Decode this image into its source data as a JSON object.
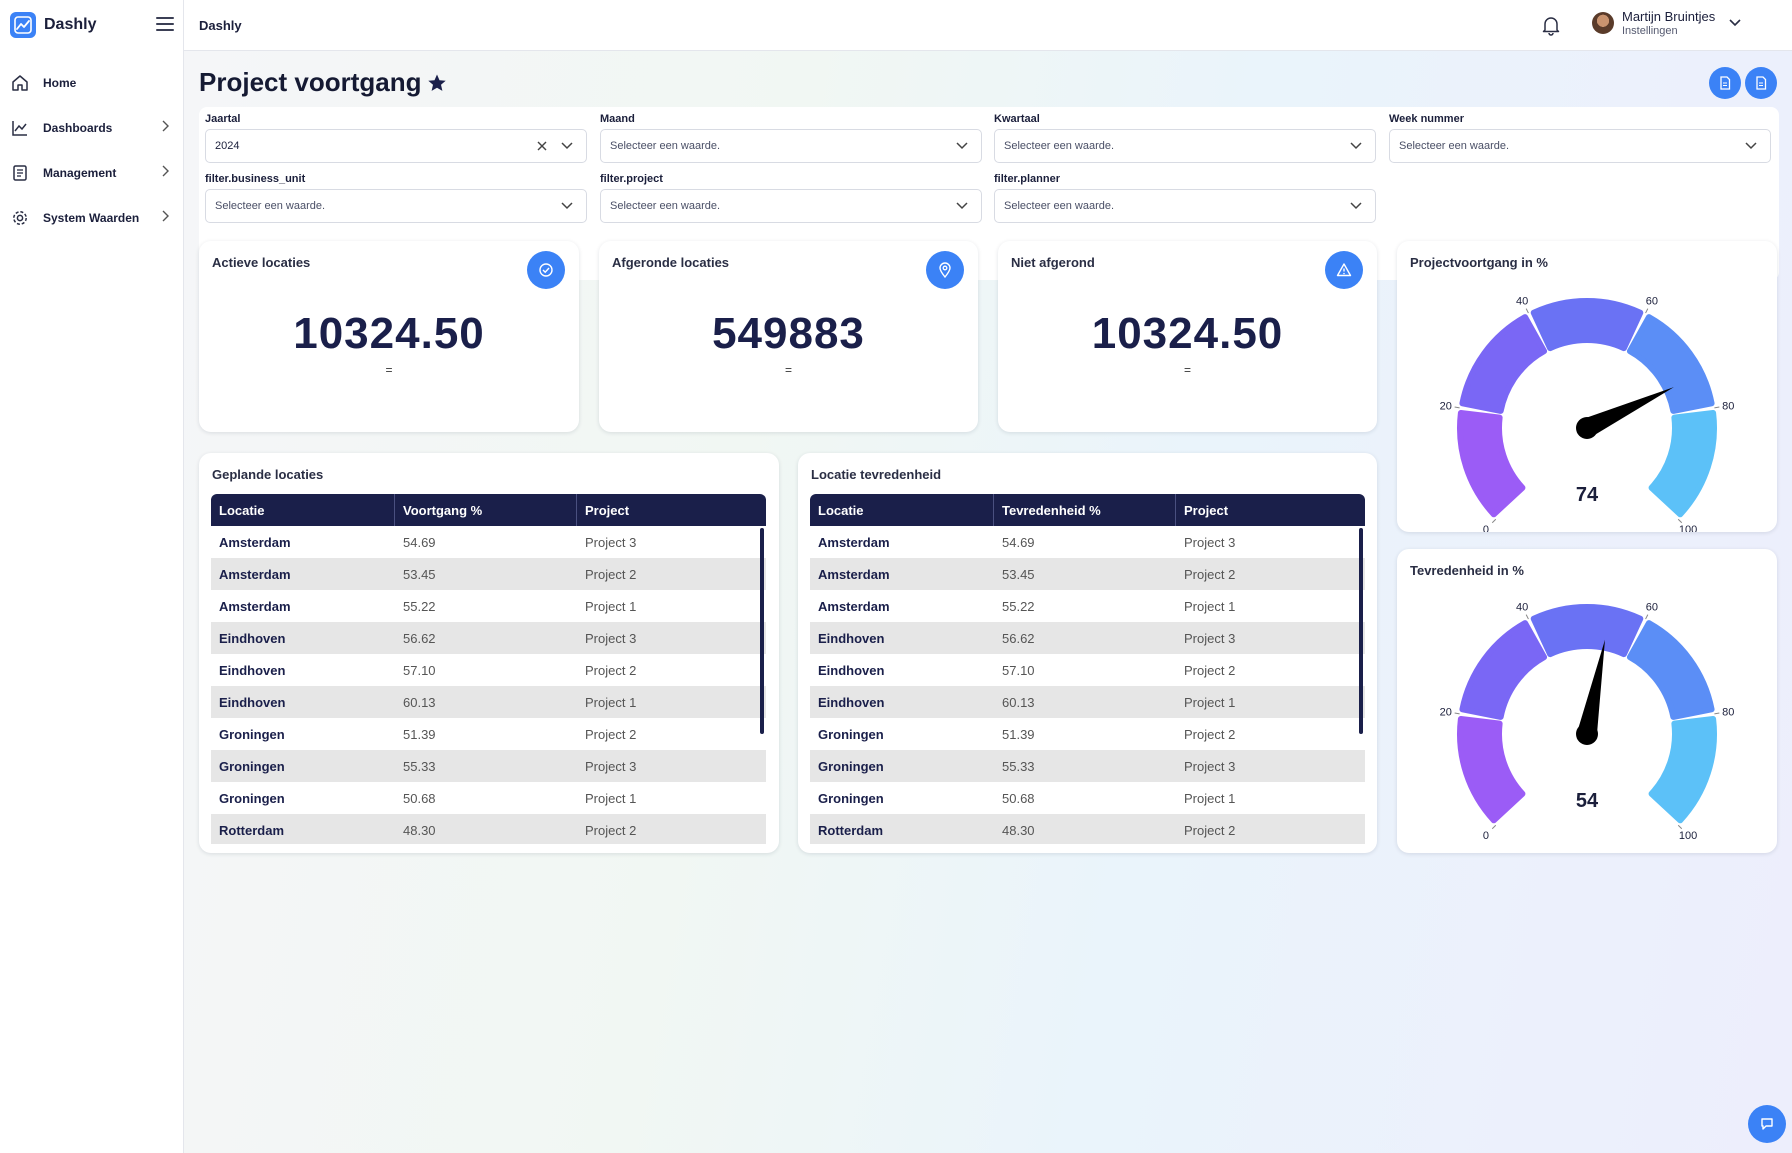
{
  "app": {
    "name": "Dashly"
  },
  "sidebar": {
    "items": [
      {
        "label": "Home",
        "icon": "home-icon"
      },
      {
        "label": "Dashboards",
        "icon": "chart-line-icon"
      },
      {
        "label": "Management",
        "icon": "document-icon"
      },
      {
        "label": "System Waarden",
        "icon": "gear-icon"
      }
    ]
  },
  "topbar": {
    "title": "Dashly",
    "user": {
      "name": "Martijn Bruintjes",
      "subtitle": "Instellingen"
    }
  },
  "page": {
    "title": "Project voortgang"
  },
  "filters": {
    "jaartal": {
      "label": "Jaartal",
      "value": "2024"
    },
    "maand": {
      "label": "Maand",
      "placeholder": "Selecteer een waarde."
    },
    "kwartaal": {
      "label": "Kwartaal",
      "placeholder": "Selecteer een waarde."
    },
    "week": {
      "label": "Week nummer",
      "placeholder": "Selecteer een waarde."
    },
    "business_unit": {
      "label": "filter.business_unit",
      "placeholder": "Selecteer een waarde."
    },
    "project": {
      "label": "filter.project",
      "placeholder": "Selecteer een waarde."
    },
    "planner": {
      "label": "filter.planner",
      "placeholder": "Selecteer een waarde."
    }
  },
  "kpis": [
    {
      "title": "Actieve locaties",
      "value": "10324.50",
      "trend": "=",
      "icon": "check-circle-icon"
    },
    {
      "title": "Afgeronde locaties",
      "value": "549883",
      "trend": "=",
      "icon": "map-pin-icon"
    },
    {
      "title": "Niet afgerond",
      "value": "10324.50",
      "trend": "=",
      "icon": "warning-triangle-icon"
    }
  ],
  "tables": {
    "geplande": {
      "title": "Geplande locaties",
      "columns": [
        "Locatie",
        "Voortgang %",
        "Project"
      ],
      "rows": [
        [
          "Amsterdam",
          "54.69",
          "Project 3"
        ],
        [
          "Amsterdam",
          "53.45",
          "Project 2"
        ],
        [
          "Amsterdam",
          "55.22",
          "Project 1"
        ],
        [
          "Eindhoven",
          "56.62",
          "Project 3"
        ],
        [
          "Eindhoven",
          "57.10",
          "Project 2"
        ],
        [
          "Eindhoven",
          "60.13",
          "Project 1"
        ],
        [
          "Groningen",
          "51.39",
          "Project 2"
        ],
        [
          "Groningen",
          "55.33",
          "Project 3"
        ],
        [
          "Groningen",
          "50.68",
          "Project 1"
        ],
        [
          "Rotterdam",
          "48.30",
          "Project 2"
        ]
      ]
    },
    "tevredenheid": {
      "title": "Locatie tevredenheid",
      "columns": [
        "Locatie",
        "Tevredenheid %",
        "Project"
      ],
      "rows": [
        [
          "Amsterdam",
          "54.69",
          "Project 3"
        ],
        [
          "Amsterdam",
          "53.45",
          "Project 2"
        ],
        [
          "Amsterdam",
          "55.22",
          "Project 1"
        ],
        [
          "Eindhoven",
          "56.62",
          "Project 3"
        ],
        [
          "Eindhoven",
          "57.10",
          "Project 2"
        ],
        [
          "Eindhoven",
          "60.13",
          "Project 1"
        ],
        [
          "Groningen",
          "51.39",
          "Project 2"
        ],
        [
          "Groningen",
          "55.33",
          "Project 3"
        ],
        [
          "Groningen",
          "50.68",
          "Project 1"
        ],
        [
          "Rotterdam",
          "48.30",
          "Project 2"
        ]
      ]
    }
  },
  "gauges": [
    {
      "title": "Projectvoortgang in %",
      "value": 74,
      "min": 0,
      "max": 100,
      "ticks": [
        "0",
        "20",
        "40",
        "60",
        "80",
        "100"
      ]
    },
    {
      "title": "Tevredenheid in %",
      "value": 54,
      "min": 0,
      "max": 100,
      "ticks": [
        "0",
        "20",
        "40",
        "60",
        "80",
        "100"
      ]
    }
  ],
  "colors": {
    "accent": "#3b82f6",
    "navy": "#1a1f4a",
    "gauge_segments": [
      "#9b5cf6",
      "#7a67f5",
      "#6a72f4",
      "#5b8ef6",
      "#5cc1f8"
    ]
  }
}
